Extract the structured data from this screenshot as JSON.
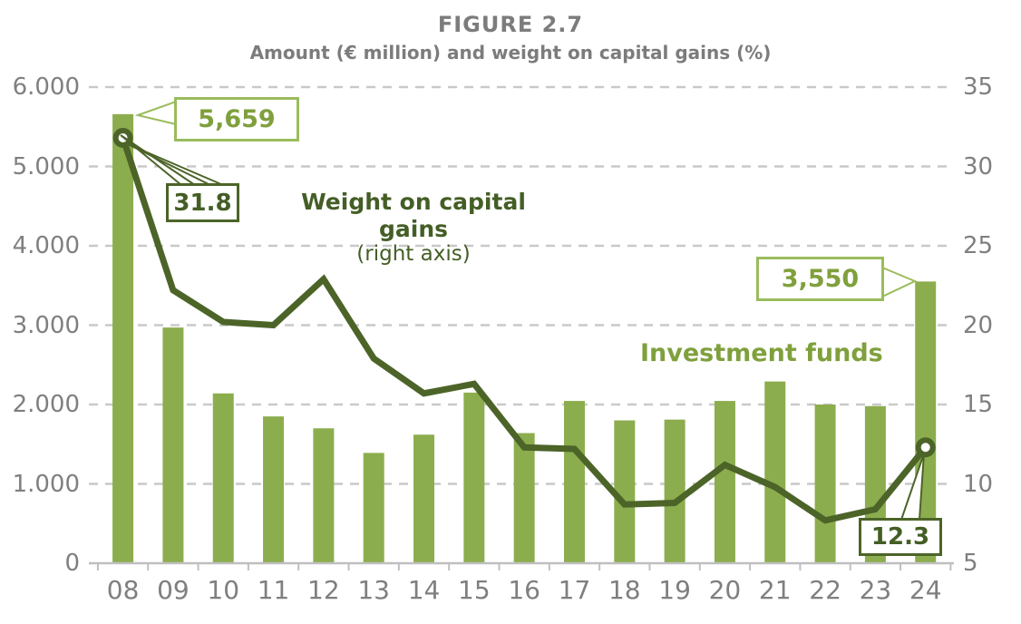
{
  "figure": {
    "title": "FIGURE 2.7",
    "subtitle": "Amount (€ million) and weight on capital gains (%)"
  },
  "labels": {
    "weight_series": "Weight on capital gains",
    "weight_axis_note": "(right axis)",
    "investment_series": "Investment funds"
  },
  "colors": {
    "bar": "#8CAD4E",
    "line": "#4C6428",
    "bar_label": "#7FA03C",
    "bar_label_border": "#9ABC5C",
    "line_label": "#445E26",
    "axis_text": "#7F7F7F",
    "gridline": "#C9C9C9",
    "axis_line": "#BFBFBF",
    "title": "#7C7C7C",
    "marker_fill": "#FFFFFF"
  },
  "chart_data": {
    "type": "bar",
    "subtype": "combo bar+line, dual axis",
    "title": "FIGURE 2.7",
    "subtitle": "Amount (€ million) and weight on capital gains (%)",
    "categories": [
      "08",
      "09",
      "10",
      "11",
      "12",
      "13",
      "14",
      "15",
      "16",
      "17",
      "18",
      "19",
      "20",
      "21",
      "22",
      "23",
      "24"
    ],
    "series": [
      {
        "name": "Investment funds",
        "type": "bar",
        "axis": "left",
        "unit": "€ million",
        "values": [
          5659,
          2970,
          2140,
          1850,
          1700,
          1390,
          1620,
          2150,
          1640,
          2045,
          1800,
          1810,
          2045,
          2290,
          2000,
          1980,
          3550
        ]
      },
      {
        "name": "Weight on capital gains",
        "type": "line",
        "axis": "right",
        "unit": "%",
        "values": [
          31.8,
          22.2,
          20.2,
          20.0,
          22.9,
          17.9,
          15.7,
          16.3,
          12.3,
          12.2,
          8.7,
          8.8,
          11.2,
          9.8,
          7.7,
          8.4,
          12.3
        ]
      }
    ],
    "left_axis": {
      "min": 0,
      "max": 6000,
      "step": 1000,
      "tick_labels": [
        "6.000",
        "5.000",
        "4.000",
        "3.000",
        "2.000",
        "1.000",
        "0"
      ]
    },
    "right_axis": {
      "min": 5,
      "max": 35,
      "step": 5,
      "tick_labels": [
        "35",
        "30",
        "25",
        "20",
        "15",
        "10",
        "5"
      ]
    },
    "data_labels": {
      "bar_first": "5,659",
      "bar_last": "3,550",
      "line_first": "31.8",
      "line_last": "12.3"
    },
    "grid": "horizontal dashed",
    "legend_position": "none (inline text labels)",
    "line_markers": "circles on first and last point only"
  }
}
